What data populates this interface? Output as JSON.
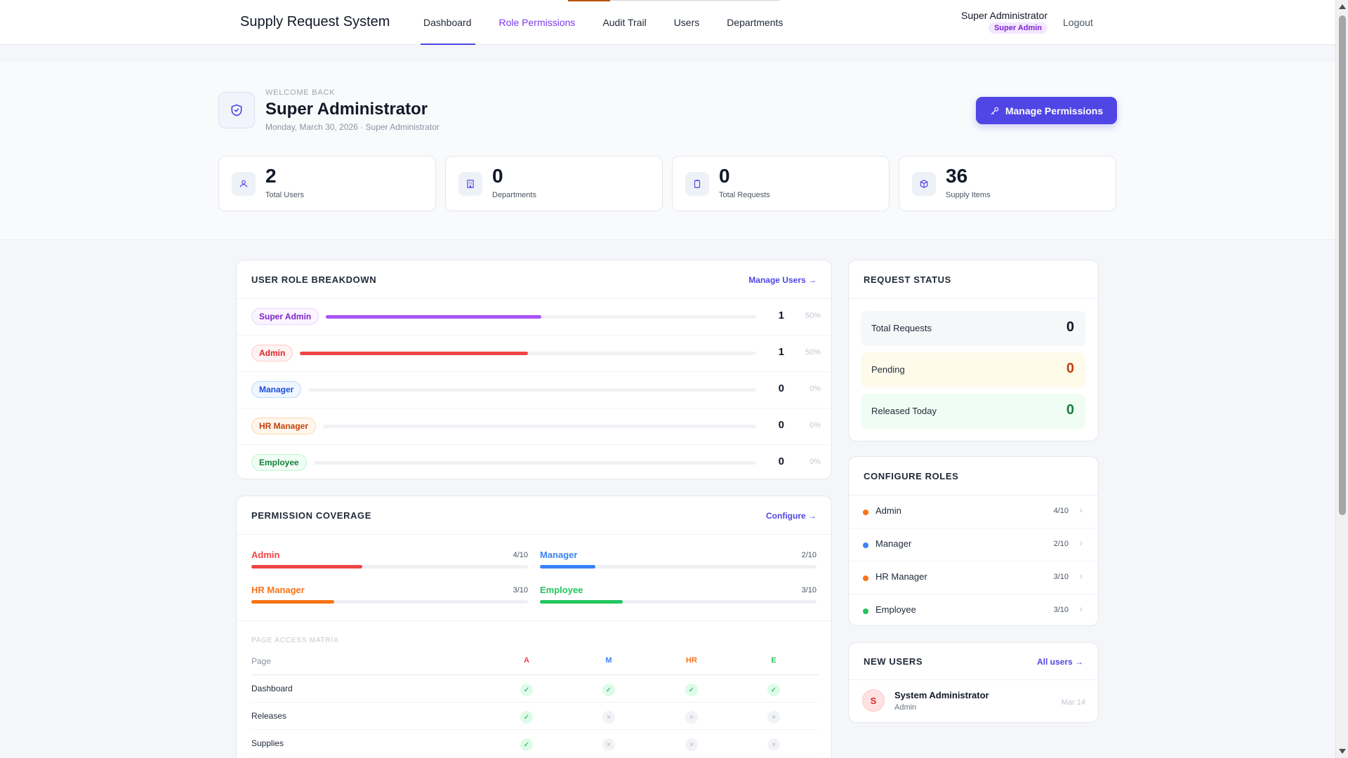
{
  "nav": {
    "brand": "Supply Request System",
    "links": [
      "Dashboard",
      "Role Permissions",
      "Audit Trail",
      "Users",
      "Departments"
    ],
    "user_name": "Super Administrator",
    "user_badge": "Super Admin",
    "logout": "Logout"
  },
  "hero": {
    "welcome": "WELCOME BACK",
    "title": "Super Administrator",
    "subtitle": "Monday, March 30, 2026 · Super Administrator",
    "manage_button": "Manage Permissions"
  },
  "stats": [
    {
      "value": "2",
      "label": "Total Users",
      "icon": "users-icon"
    },
    {
      "value": "0",
      "label": "Departments",
      "icon": "building-icon"
    },
    {
      "value": "0",
      "label": "Total Requests",
      "icon": "clipboard-icon"
    },
    {
      "value": "36",
      "label": "Supply Items",
      "icon": "box-icon"
    }
  ],
  "role_breakdown": {
    "title": "USER ROLE BREAKDOWN",
    "link": "Manage Users →",
    "rows": [
      {
        "role": "Super Admin",
        "count": "1",
        "pct": "50%",
        "fraction": 0.5,
        "color": "#a855f7",
        "pill_bg": "#faf5ff",
        "pill_border": "#e9d5ff",
        "pill_text": "#7e22ce"
      },
      {
        "role": "Admin",
        "count": "1",
        "pct": "50%",
        "fraction": 0.5,
        "color": "#ef4444",
        "pill_bg": "#fef2f2",
        "pill_border": "#fecaca",
        "pill_text": "#dc2626"
      },
      {
        "role": "Manager",
        "count": "0",
        "pct": "0%",
        "fraction": 0,
        "color": "#3b82f6",
        "pill_bg": "#eff6ff",
        "pill_border": "#bfdbfe",
        "pill_text": "#1d4ed8"
      },
      {
        "role": "HR Manager",
        "count": "0",
        "pct": "0%",
        "fraction": 0,
        "color": "#f97316",
        "pill_bg": "#fff7ed",
        "pill_border": "#fed7aa",
        "pill_text": "#c2410c"
      },
      {
        "role": "Employee",
        "count": "0",
        "pct": "0%",
        "fraction": 0,
        "color": "#22c55e",
        "pill_bg": "#f0fdf4",
        "pill_border": "#bbf7d0",
        "pill_text": "#15803d"
      }
    ]
  },
  "request_status": {
    "title": "REQUEST STATUS",
    "items": [
      {
        "label": "Total Requests",
        "value": "0",
        "bg": "#f6f7f9",
        "color": "#111827"
      },
      {
        "label": "Pending",
        "value": "0",
        "bg": "#fffbeb",
        "color": "#c2410c"
      },
      {
        "label": "Released Today",
        "value": "0",
        "bg": "#f0fdf4",
        "color": "#15803d"
      }
    ]
  },
  "configure_roles": {
    "title": "CONFIGURE ROLES",
    "rows": [
      {
        "name": "Admin",
        "count": "4/10",
        "color": "#f97316"
      },
      {
        "name": "Manager",
        "count": "2/10",
        "color": "#3b82f6"
      },
      {
        "name": "HR Manager",
        "count": "3/10",
        "color": "#f97316"
      },
      {
        "name": "Employee",
        "count": "3/10",
        "color": "#22c55e"
      }
    ]
  },
  "permission_coverage": {
    "title": "PERMISSION COVERAGE",
    "link": "Configure →",
    "items": [
      {
        "name": "Admin",
        "count": "4/10",
        "fraction": 0.4,
        "color": "#ef4444"
      },
      {
        "name": "Manager",
        "count": "2/10",
        "fraction": 0.2,
        "color": "#3b82f6"
      },
      {
        "name": "HR Manager",
        "count": "3/10",
        "fraction": 0.3,
        "color": "#f97316"
      },
      {
        "name": "Employee",
        "count": "3/10",
        "fraction": 0.3,
        "color": "#22c55e"
      }
    ],
    "matrix_title": "PAGE ACCESS MATRIX",
    "matrix_header": {
      "page": "Page",
      "cols": [
        "A",
        "M",
        "HR",
        "E"
      ],
      "col_colors": [
        "#ef4444",
        "#3b82f6",
        "#f97316",
        "#22c55e"
      ]
    },
    "matrix_rows": [
      {
        "page": "Dashboard",
        "access": [
          true,
          true,
          true,
          true
        ]
      },
      {
        "page": "Releases",
        "access": [
          true,
          false,
          false,
          false
        ]
      },
      {
        "page": "Supplies",
        "access": [
          true,
          false,
          false,
          false
        ]
      }
    ]
  },
  "new_users": {
    "title": "NEW USERS",
    "link": "All users →",
    "user": {
      "initial": "S",
      "name": "System Administrator",
      "role": "Admin",
      "date": "Mar 14"
    }
  }
}
